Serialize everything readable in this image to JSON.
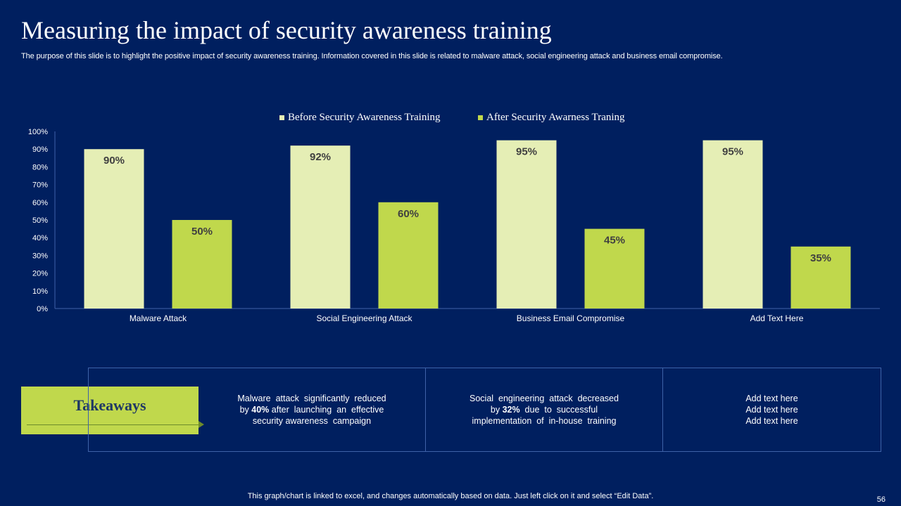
{
  "slide": {
    "title": "Measuring the impact of security awareness training",
    "subtitle": "The purpose of this slide is to highlight the positive impact of security awareness training. Information covered in this slide is related to malware attack, social engineering attack and business email compromise.",
    "footer": "This graph/chart is linked to excel, and changes automatically based on data. Just left click on it and select “Edit Data”.",
    "page_number": "56"
  },
  "colors": {
    "background": "#001f5f",
    "before": "#e5eeb5",
    "after": "#c0d84c",
    "axis": "#3f62a8",
    "accent": "#c0d84c"
  },
  "chart_data": {
    "type": "bar",
    "title": "",
    "categories": [
      "Malware Attack",
      "Social Engineering Attack",
      "Business Email Compromise",
      "Add Text Here"
    ],
    "series": [
      {
        "name": "Before Security Awareness Training",
        "values": [
          90,
          92,
          95,
          95
        ],
        "labels": [
          "90%",
          "92%",
          "95%",
          "95%"
        ]
      },
      {
        "name": "After Security Awarness Traning",
        "values": [
          50,
          60,
          45,
          35
        ],
        "labels": [
          "50%",
          "60%",
          "45%",
          "35%"
        ]
      }
    ],
    "ylim": [
      0,
      100
    ],
    "yticks": [
      "0%",
      "10%",
      "20%",
      "30%",
      "40%",
      "50%",
      "60%",
      "70%",
      "80%",
      "90%",
      "100%"
    ],
    "xlabel": "",
    "ylabel": "",
    "legend_position": "top-center",
    "grid": false
  },
  "takeaways": {
    "label": "Takeaways",
    "items": [
      {
        "line1": "Malware  attack  significantly  reduced",
        "line2_pre": "by ",
        "line2_bold": "40%",
        "line2_post": " after  launching  an  effective",
        "line3": "security awareness  campaign"
      },
      {
        "line1": "Social  engineering  attack  decreased",
        "line2_pre": "by ",
        "line2_bold": "32%",
        "line2_post": "  due  to  successful",
        "line3": "implementation  of  in-house  training"
      },
      {
        "line1": "Add text here",
        "line2_pre": "Add text here",
        "line2_bold": "",
        "line2_post": "",
        "line3": "Add text here"
      }
    ]
  }
}
